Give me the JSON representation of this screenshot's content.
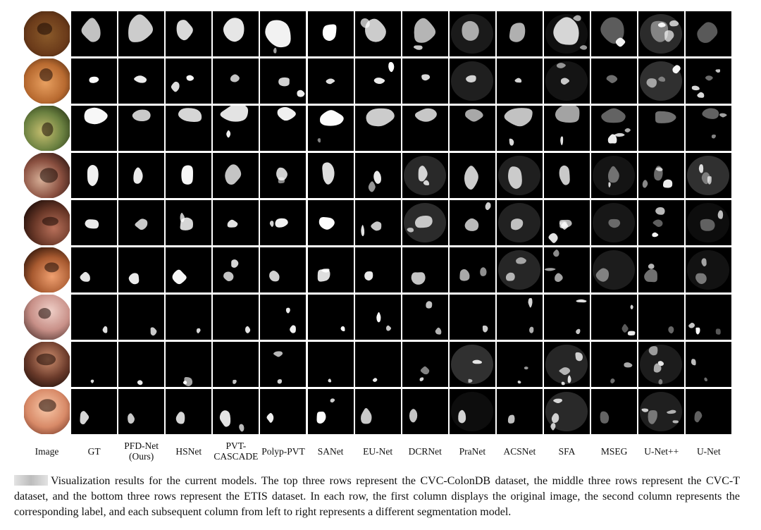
{
  "figure": {
    "column_labels": [
      "Image",
      "GT",
      "PFD-Net\n(Ours)",
      "HSNet",
      "PVT-\nCASCADE",
      "Polyp-PVT",
      "SANet",
      "EU-Net",
      "DCRNet",
      "PraNet",
      "ACSNet",
      "SFA",
      "MSEG",
      "U-Net++",
      "U-Net"
    ],
    "row_count": 9,
    "caption": "Visualization results for the current models. The top three rows represent the CVC-ColonDB dataset, the middle three rows represent the CVC-T dataset, and the bottom three rows represent the ETIS dataset. In each row, the first column displays the original image, the second column represents the corresponding label, and each subsequent column from left to right represents a different segmentation model."
  }
}
